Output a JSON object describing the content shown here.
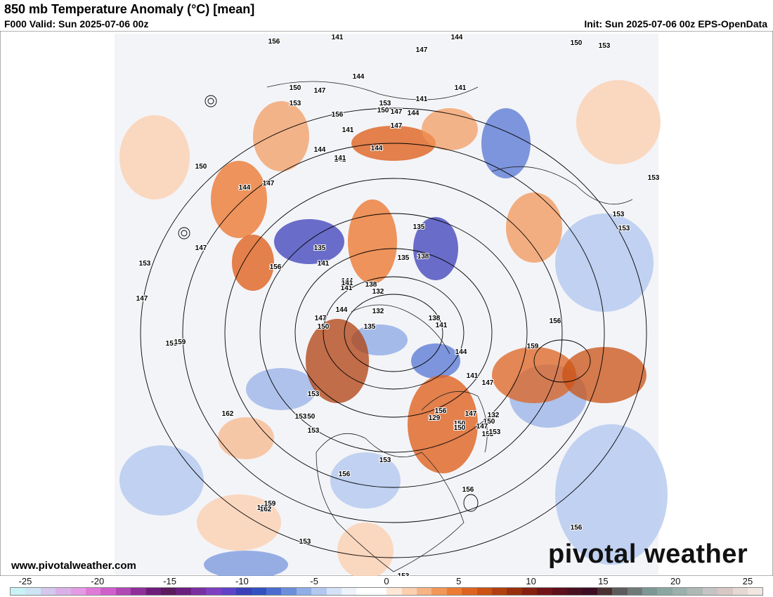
{
  "header": {
    "title": "850 mb Temperature Anomaly (°C) [mean]",
    "valid": "F000 Valid: Sun 2025-07-06 00z",
    "init": "Init: Sun 2025-07-06 00z EPS-OpenData"
  },
  "footer": {
    "website": "www.pivotalweather.com",
    "logo": "pivotal weather"
  },
  "colorbar": {
    "ticks": [
      "-25",
      "-20",
      "-15",
      "-10",
      "-5",
      "0",
      "5",
      "10",
      "15",
      "20",
      "25"
    ],
    "colors": [
      "#c8f2f6",
      "#cde4f4",
      "#d4c8ee",
      "#dbb0e8",
      "#e49be4",
      "#e07ad9",
      "#d05fcc",
      "#b048b5",
      "#8f2f9a",
      "#6e1c7a",
      "#5a1a5e",
      "#6a1f7e",
      "#7a2fa0",
      "#7d3fc0",
      "#5f42c8",
      "#3b3fb8",
      "#3350c0",
      "#4a6cd0",
      "#6d8edb",
      "#90ade6",
      "#b3c8ef",
      "#d4e1f6",
      "#edf2fb",
      "#ffffff",
      "#ffffff",
      "#fde8d8",
      "#fbd0b0",
      "#f6b384",
      "#f29758",
      "#ec7b33",
      "#de6320",
      "#c95214",
      "#b0400f",
      "#98300e",
      "#852010",
      "#701418",
      "#5c101c",
      "#4a1020",
      "#3c0d22",
      "#4a3030",
      "#5c5c5c",
      "#6f7a78",
      "#7d9894",
      "#8aa6a0",
      "#9cb0ab",
      "#aeb8b4",
      "#c4c4c4",
      "#d8c8c4",
      "#e6d8d4",
      "#f0e6e2"
    ]
  },
  "contour_labels": [
    "141",
    "144",
    "147",
    "150",
    "153",
    "156",
    "141",
    "150",
    "147",
    "153",
    "156",
    "144",
    "141",
    "153",
    "150",
    "147",
    "144",
    "141",
    "141",
    "147",
    "144",
    "141",
    "144",
    "147",
    "150",
    "144",
    "147",
    "153",
    "147",
    "153",
    "156",
    "135",
    "141",
    "144",
    "141",
    "138",
    "132",
    "135",
    "138",
    "135",
    "132",
    "141",
    "144",
    "147",
    "150",
    "135",
    "138",
    "141",
    "144",
    "141",
    "147",
    "150",
    "153",
    "156",
    "129",
    "132",
    "147",
    "150",
    "153",
    "153",
    "153",
    "156",
    "159",
    "162",
    "156",
    "159",
    "162",
    "153",
    "156",
    "159",
    "153",
    "156",
    "153",
    "153",
    "153",
    "153",
    "156",
    "147",
    "150",
    "153",
    "150"
  ]
}
